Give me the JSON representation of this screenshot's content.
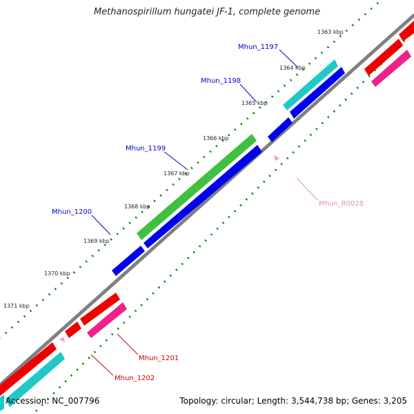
{
  "title": "Methanospirillum hungatei JF-1, complete genome",
  "footer": {
    "accession": "Accession: NC_007796",
    "info": "Topology: circular; Length: 3,544,738 bp; Genes: 3,205"
  },
  "scale_labels": [
    "1363 kbp",
    "1364 kbp",
    "1365 kbp",
    "1366 kbp",
    "1367 kbp",
    "1368 kbp",
    "1369 kbp",
    "1370 kbp",
    "1371 kbp"
  ],
  "gene_labels": {
    "mhun_1197": "Mhun_1197",
    "mhun_1198": "Mhun_1198",
    "mhun_1199": "Mhun_1199",
    "mhun_1200": "Mhun_1200",
    "mhun_r0028": "Mhun_R0028",
    "mhun_1201": "Mhun_1201",
    "mhun_1202": "Mhun_1202"
  },
  "colors": {
    "backbone": "#808080",
    "forward_cds": "#0000ee",
    "reverse_cds": "#ee0000",
    "cyan_track": "#20c8c8",
    "green_track": "#40c040",
    "pink_track": "#ee2288",
    "rna": "#f0a0c8",
    "dots": "#008000",
    "label_blue": "#0000cc",
    "label_red": "#cc0000",
    "label_pink": "#e890b8"
  }
}
